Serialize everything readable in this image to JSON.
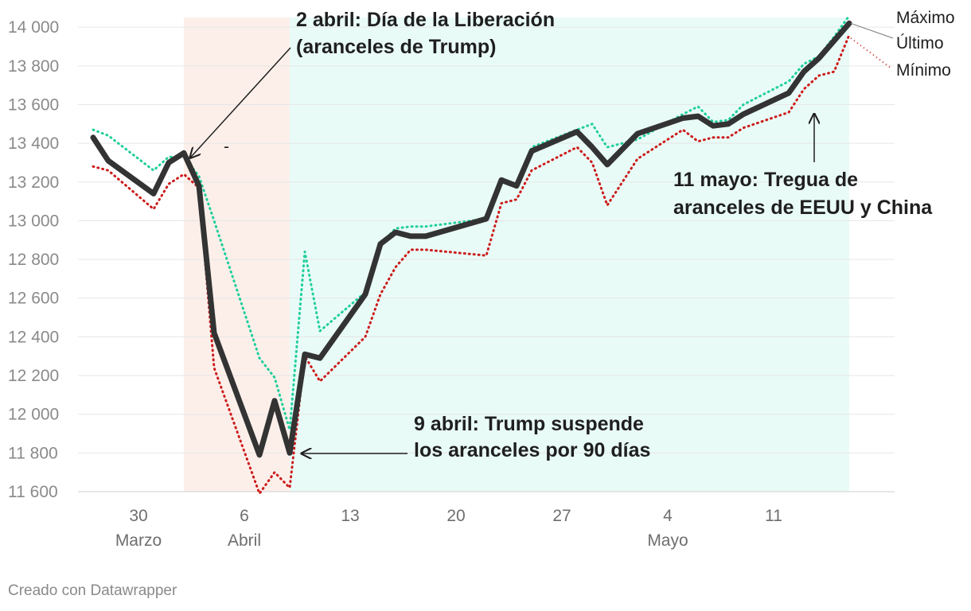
{
  "chart_data": {
    "type": "line",
    "title": "",
    "xlabel": "",
    "ylabel": "",
    "ylim": [
      11600,
      14050
    ],
    "yticks": [
      11600,
      11800,
      12000,
      12200,
      12400,
      12600,
      12800,
      13000,
      13200,
      13400,
      13600,
      13800,
      14000
    ],
    "ytick_labels": [
      "11 600",
      "11 800",
      "12 000",
      "12 200",
      "12 400",
      "12 600",
      "12 800",
      "13 000",
      "13 200",
      "13 400",
      "13 600",
      "13 800",
      "14 000"
    ],
    "xlim": [
      "2025-03-26",
      "2025-05-19"
    ],
    "xticks": [
      {
        "date": "2025-03-30",
        "label": "30",
        "month": "Marzo"
      },
      {
        "date": "2025-04-06",
        "label": "6",
        "month": "Abril"
      },
      {
        "date": "2025-04-13",
        "label": "13",
        "month": ""
      },
      {
        "date": "2025-04-20",
        "label": "20",
        "month": ""
      },
      {
        "date": "2025-04-27",
        "label": "27",
        "month": ""
      },
      {
        "date": "2025-05-04",
        "label": "4",
        "month": "Mayo"
      },
      {
        "date": "2025-05-11",
        "label": "11",
        "month": ""
      }
    ],
    "grid": true,
    "legend_position": "right",
    "x": [
      "2025-03-27",
      "2025-03-28",
      "2025-03-31",
      "2025-04-01",
      "2025-04-02",
      "2025-04-03",
      "2025-04-04",
      "2025-04-07",
      "2025-04-08",
      "2025-04-09",
      "2025-04-10",
      "2025-04-11",
      "2025-04-14",
      "2025-04-15",
      "2025-04-16",
      "2025-04-17",
      "2025-04-18",
      "2025-04-22",
      "2025-04-23",
      "2025-04-24",
      "2025-04-25",
      "2025-04-28",
      "2025-04-29",
      "2025-04-30",
      "2025-05-02",
      "2025-05-05",
      "2025-05-06",
      "2025-05-07",
      "2025-05-08",
      "2025-05-09",
      "2025-05-12",
      "2025-05-13",
      "2025-05-14",
      "2025-05-15",
      "2025-05-16"
    ],
    "series": [
      {
        "name": "Máximo",
        "color": "#1fcf9b",
        "style": "dotted",
        "values": [
          13470,
          13440,
          13260,
          13330,
          13330,
          13230,
          13000,
          12290,
          12190,
          11920,
          12840,
          12430,
          12630,
          12880,
          12960,
          12970,
          12970,
          13010,
          13210,
          13180,
          13380,
          13470,
          13500,
          13380,
          13420,
          13550,
          13590,
          13510,
          13520,
          13600,
          13720,
          13810,
          13850,
          13950,
          14060
        ]
      },
      {
        "name": "Último",
        "color": "#333333",
        "style": "solid",
        "values": [
          13430,
          13310,
          13140,
          13300,
          13350,
          13180,
          12420,
          11790,
          12070,
          11800,
          12310,
          12290,
          12620,
          12880,
          12940,
          12920,
          12920,
          13010,
          13210,
          13180,
          13360,
          13460,
          13380,
          13290,
          13450,
          13530,
          13540,
          13490,
          13500,
          13550,
          13660,
          13770,
          13840,
          13930,
          14020
        ]
      },
      {
        "name": "Mínimo",
        "color": "#cc1b1b",
        "style": "dotted",
        "values": [
          13280,
          13260,
          13060,
          13190,
          13240,
          13170,
          12240,
          11590,
          11700,
          11620,
          12300,
          12170,
          12400,
          12620,
          12760,
          12850,
          12850,
          12820,
          13090,
          13110,
          13260,
          13380,
          13300,
          13080,
          13320,
          13470,
          13410,
          13430,
          13430,
          13480,
          13560,
          13680,
          13750,
          13770,
          13960
        ]
      }
    ],
    "shaded_periods": [
      {
        "from": "2025-04-02",
        "to": "2025-04-09",
        "color": "#fcefea"
      },
      {
        "from": "2025-04-09",
        "to": "2025-05-16",
        "color": "#e9fbf7"
      }
    ],
    "annotations": [
      {
        "lines": [
          "2 abril: Día de la Liberación",
          "(aranceles de Trump)"
        ],
        "target_date": "2025-04-02",
        "target_value": 13350
      },
      {
        "lines": [
          "9 abril: Trump suspende",
          "los aranceles por 90 días"
        ],
        "target_date": "2025-04-10",
        "target_value": 11800
      },
      {
        "lines": [
          "11 mayo: Tregua de",
          "aranceles de EEUU y China"
        ],
        "target_date": "2025-05-12",
        "target_value": 13560
      }
    ],
    "stray_mark": "-"
  },
  "footer": {
    "credit": "Creado con Datawrapper"
  }
}
